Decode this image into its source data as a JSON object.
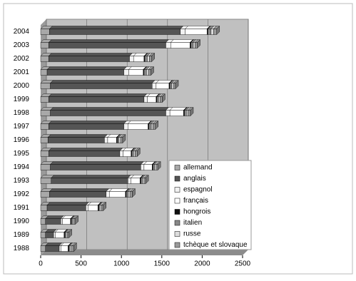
{
  "chart_data": {
    "type": "stacked-bar-horizontal",
    "categories": [
      "2004",
      "2003",
      "2002",
      "2001",
      "2000",
      "1999",
      "1998",
      "1997",
      "1996",
      "1995",
      "1994",
      "1993",
      "1992",
      "1991",
      "1990",
      "1989",
      "1988"
    ],
    "series": [
      {
        "name": "allemand",
        "color": "#a8a8a8",
        "values": [
          110,
          100,
          100,
          80,
          120,
          100,
          120,
          100,
          90,
          100,
          120,
          130,
          110,
          80,
          60,
          60,
          60
        ]
      },
      {
        "name": "anglais",
        "color": "#555555",
        "values": [
          1620,
          1450,
          1000,
          950,
          1260,
          1180,
          1430,
          930,
          700,
          880,
          1120,
          950,
          700,
          480,
          190,
          100,
          170
        ]
      },
      {
        "name": "espagnol",
        "color": "#f2f2f2",
        "values": [
          60,
          60,
          50,
          60,
          50,
          40,
          50,
          50,
          40,
          40,
          40,
          40,
          40,
          30,
          20,
          20,
          20
        ]
      },
      {
        "name": "français",
        "color": "#ffffff",
        "values": [
          270,
          240,
          130,
          180,
          160,
          110,
          170,
          250,
          110,
          100,
          100,
          110,
          200,
          120,
          100,
          110,
          90
        ]
      },
      {
        "name": "hongrois",
        "color": "#111111",
        "values": [
          10,
          10,
          10,
          10,
          10,
          10,
          10,
          10,
          10,
          10,
          10,
          10,
          10,
          10,
          10,
          10,
          10
        ]
      },
      {
        "name": "italien",
        "color": "#888888",
        "values": [
          40,
          30,
          30,
          30,
          25,
          20,
          25,
          30,
          20,
          20,
          20,
          20,
          25,
          15,
          15,
          15,
          15
        ]
      },
      {
        "name": "russe",
        "color": "#dddddd",
        "values": [
          30,
          20,
          25,
          25,
          20,
          20,
          20,
          20,
          20,
          20,
          20,
          20,
          20,
          20,
          15,
          15,
          20
        ]
      },
      {
        "name": "tchèque et slovaque",
        "color": "#9a9a9a",
        "values": [
          40,
          30,
          30,
          30,
          25,
          25,
          30,
          30,
          25,
          25,
          20,
          20,
          30,
          20,
          20,
          20,
          25
        ]
      }
    ],
    "xlim": [
      0,
      2500
    ],
    "xticks": [
      0,
      500,
      1000,
      1500,
      2000,
      2500
    ],
    "grid": true
  }
}
